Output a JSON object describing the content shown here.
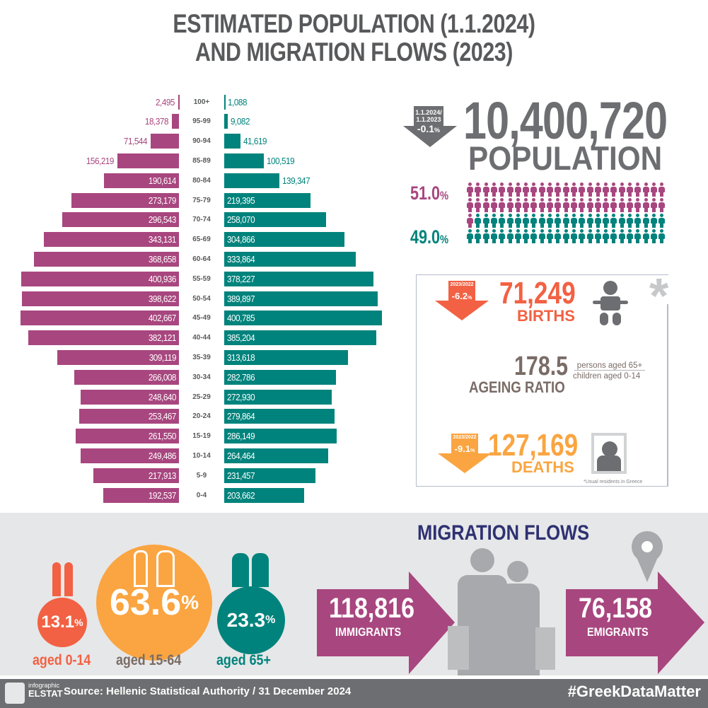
{
  "title": {
    "line1": "ESTIMATED POPULATION (1.1.2024)",
    "line2": "AND MIGRATION FLOWS (2023)"
  },
  "colors": {
    "female": "#a8467f",
    "male": "#00837c",
    "births": "#f26143",
    "deaths": "#faa541",
    "gray": "#6d6e71",
    "ageing": "#7a6c66",
    "navy": "#2e3171",
    "bg_band": "#e6e7e8"
  },
  "chart_data": {
    "type": "bar",
    "subtype": "population-pyramid",
    "categories": [
      "100+",
      "95-99",
      "90-94",
      "85-89",
      "80-84",
      "75-79",
      "70-74",
      "65-69",
      "60-64",
      "55-59",
      "50-54",
      "45-49",
      "40-44",
      "35-39",
      "30-34",
      "25-29",
      "20-24",
      "15-19",
      "10-14",
      "5-9",
      "0-4"
    ],
    "category_labels": [
      "100+",
      "95-99",
      "90-94",
      "85-89",
      "80-84",
      "75-79",
      "70-74",
      "65-69",
      "60-64",
      "55-59",
      "50-54",
      "45-49",
      "40-44",
      "35-39",
      "30-34",
      "25-29",
      "20-24",
      "15-19",
      "10-14",
      "5-9",
      "0-4"
    ],
    "series": [
      {
        "side": "left",
        "color": "#a8467f",
        "values": [
          2495,
          18378,
          71544,
          156219,
          190614,
          273179,
          296543,
          343131,
          368658,
          400936,
          398622,
          402667,
          382121,
          309119,
          266008,
          248640,
          253467,
          261550,
          249486,
          217913,
          192537
        ],
        "labels": [
          "2,495",
          "18,378",
          "71,544",
          "156,219",
          "190,614",
          "273,179",
          "296,543",
          "343,131",
          "368,658",
          "400,936",
          "398,622",
          "402,667",
          "382,121",
          "309,119",
          "266,008",
          "248,640",
          "253,467",
          "261,550",
          "249,486",
          "217,913",
          "192,537"
        ]
      },
      {
        "side": "right",
        "color": "#00837c",
        "values": [
          1088,
          9082,
          41619,
          100519,
          139347,
          219395,
          258070,
          304866,
          333864,
          378227,
          389897,
          400785,
          385204,
          313618,
          282786,
          272930,
          279864,
          286149,
          264464,
          231457,
          203662
        ],
        "labels": [
          "1,088",
          "9,082",
          "41,619",
          "100,519",
          "139,347",
          "219,395",
          "258,070",
          "304,866",
          "333,864",
          "378,227",
          "389,897",
          "400,785",
          "385,204",
          "313,618",
          "282,786",
          "272,930",
          "279,864",
          "286,149",
          "264,464",
          "231,457",
          "203,662"
        ]
      }
    ]
  },
  "population": {
    "change_period_1": "1.1.2024/",
    "change_period_2": "1.1.2023",
    "change_value": "-0.1",
    "pct": "%",
    "total": "10,400,720",
    "label": "POPULATION",
    "female_pct": "51.0",
    "male_pct": "49.0",
    "female_share": 51,
    "male_share": 49
  },
  "vital": {
    "births_period": "2023/2022",
    "births_change": "-6.2",
    "births": "71,249",
    "births_label": "BIRTHS",
    "ageing_value": "178.5",
    "ageing_label": "AGEING RATIO",
    "ageing_num": "persons aged 65+",
    "ageing_den": "children aged 0-14",
    "deaths_period": "2023/2022",
    "deaths_change": "-9.1",
    "deaths": "127,169",
    "deaths_label": "DEATHS",
    "asterisk": "*",
    "footnote": "*Usual residents in Greece"
  },
  "age_groups": [
    {
      "value": "13.1",
      "pct": "%",
      "label": "aged 0-14"
    },
    {
      "value": "63.6",
      "pct": "%",
      "label": "aged 15-64"
    },
    {
      "value": "23.3",
      "pct": "%",
      "label": "aged 65+"
    }
  ],
  "migration": {
    "title": "MIGRATION FLOWS",
    "immigrants": "118,816",
    "immigrants_label": "IMMIGRANTS",
    "emigrants": "76,158",
    "emigrants_label": "EMIGRANTS"
  },
  "footer": {
    "logo_top": "infographic",
    "logo_bottom": "ELSTAT",
    "source": "Source: Hellenic Statistical Authority / 31 December 2024",
    "hashtag": "#GreekDataMatter"
  }
}
